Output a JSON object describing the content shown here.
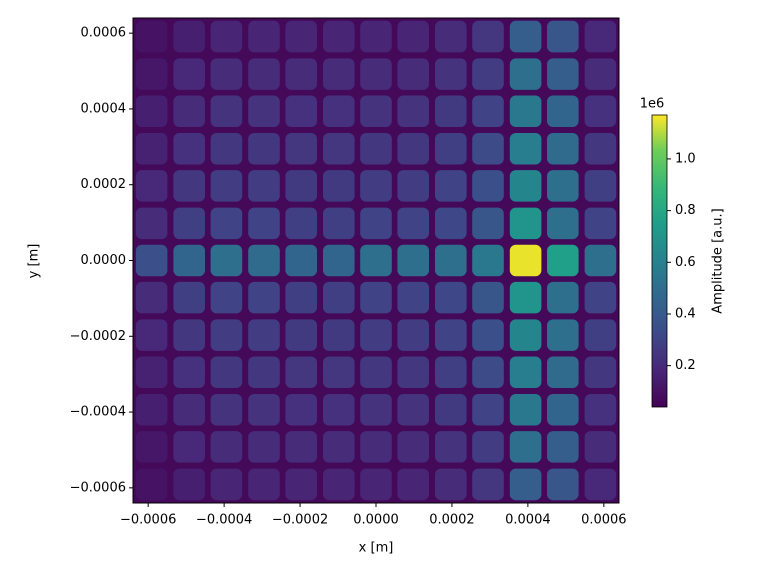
{
  "chart_data": {
    "type": "heatmap",
    "xlabel": "x [m]",
    "ylabel": "y [m]",
    "colorbar_label": "Amplitude [a.u.]",
    "colorbar_offset": "1e6",
    "colormap": "viridis",
    "xlim": [
      -0.00064,
      0.00064
    ],
    "ylim": [
      -0.00064,
      0.00064
    ],
    "xticks": [
      {
        "value": -0.0006,
        "label": "−0.0006"
      },
      {
        "value": -0.0004,
        "label": "−0.0004"
      },
      {
        "value": -0.0002,
        "label": "−0.0002"
      },
      {
        "value": 0,
        "label": "0.0000"
      },
      0.0002,
      0.0004,
      0.0006
    ],
    "yticks": [
      {
        "value": -0.0006,
        "label": "−0.0006"
      },
      {
        "value": -0.0004,
        "label": "−0.0004"
      },
      {
        "value": -0.0002,
        "label": "−0.0002"
      },
      {
        "value": 0,
        "label": "0.0000"
      },
      0.0002,
      0.0004,
      0.0006
    ],
    "zlim": [
      0.04,
      1.17
    ],
    "zticks": [
      0.2,
      0.4,
      0.6,
      0.8,
      {
        "value": 1.0,
        "label": "1.0"
      }
    ],
    "x": [
      -0.000591,
      -0.000492,
      -0.000394,
      -0.000295,
      -0.000197,
      -9.8e-05,
      0,
      9.8e-05,
      0.000197,
      0.000295,
      0.000394,
      0.000492,
      0.000591
    ],
    "y": [
      0.000591,
      0.000492,
      0.000394,
      0.000295,
      0.000197,
      9.8e-05,
      0,
      -9.8e-05,
      -0.000197,
      -0.000295,
      -0.000394,
      -0.000492,
      -0.000591
    ],
    "values": [
      [
        0.1,
        0.15,
        0.17,
        0.17,
        0.17,
        0.17,
        0.17,
        0.17,
        0.2,
        0.24,
        0.42,
        0.38,
        0.18
      ],
      [
        0.12,
        0.18,
        0.2,
        0.2,
        0.2,
        0.2,
        0.2,
        0.2,
        0.23,
        0.27,
        0.5,
        0.42,
        0.2
      ],
      [
        0.15,
        0.2,
        0.23,
        0.23,
        0.22,
        0.22,
        0.23,
        0.23,
        0.26,
        0.3,
        0.55,
        0.45,
        0.22
      ],
      [
        0.16,
        0.22,
        0.25,
        0.25,
        0.24,
        0.24,
        0.25,
        0.25,
        0.28,
        0.33,
        0.58,
        0.48,
        0.25
      ],
      [
        0.18,
        0.25,
        0.27,
        0.27,
        0.26,
        0.26,
        0.27,
        0.27,
        0.3,
        0.35,
        0.62,
        0.5,
        0.28
      ],
      [
        0.2,
        0.28,
        0.3,
        0.3,
        0.28,
        0.28,
        0.3,
        0.3,
        0.32,
        0.38,
        0.7,
        0.5,
        0.3
      ],
      [
        0.35,
        0.45,
        0.5,
        0.48,
        0.45,
        0.45,
        0.5,
        0.5,
        0.5,
        0.55,
        1.15,
        0.75,
        0.5
      ],
      [
        0.2,
        0.28,
        0.3,
        0.3,
        0.28,
        0.28,
        0.3,
        0.3,
        0.32,
        0.38,
        0.7,
        0.5,
        0.3
      ],
      [
        0.18,
        0.25,
        0.27,
        0.27,
        0.26,
        0.26,
        0.27,
        0.27,
        0.3,
        0.35,
        0.62,
        0.5,
        0.28
      ],
      [
        0.16,
        0.22,
        0.25,
        0.25,
        0.24,
        0.24,
        0.25,
        0.25,
        0.28,
        0.33,
        0.58,
        0.48,
        0.25
      ],
      [
        0.15,
        0.2,
        0.23,
        0.23,
        0.22,
        0.22,
        0.23,
        0.23,
        0.26,
        0.3,
        0.55,
        0.45,
        0.22
      ],
      [
        0.12,
        0.18,
        0.2,
        0.2,
        0.2,
        0.2,
        0.2,
        0.2,
        0.23,
        0.27,
        0.5,
        0.42,
        0.2
      ],
      [
        0.1,
        0.15,
        0.17,
        0.17,
        0.17,
        0.17,
        0.17,
        0.17,
        0.2,
        0.24,
        0.42,
        0.38,
        0.18
      ]
    ]
  }
}
